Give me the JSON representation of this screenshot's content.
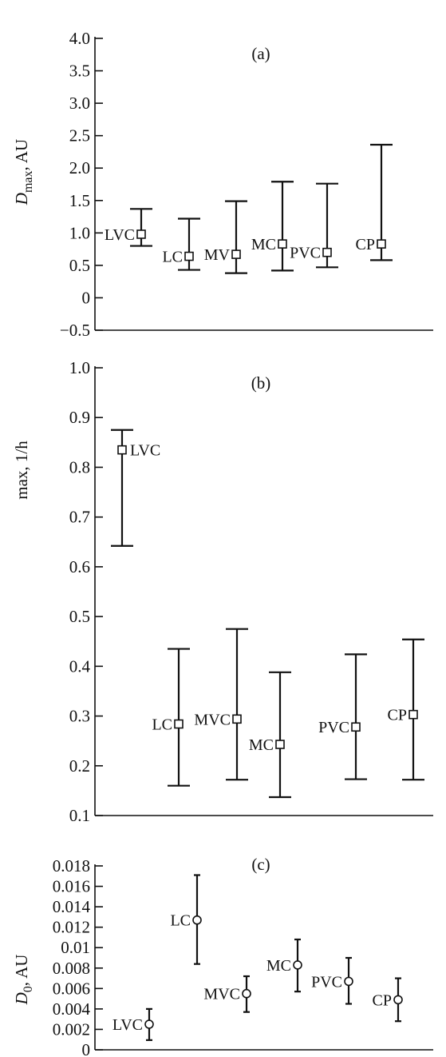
{
  "chart_data": [
    {
      "type": "scatter",
      "panel": "(a)",
      "ylabel": {
        "symbol": "D",
        "sub": "max",
        "unit": ", AU"
      },
      "ylim": [
        -0.5,
        4.0
      ],
      "yticks": [
        "4.0",
        "3.5",
        "3.0",
        "2.5",
        "2.0",
        "1.5",
        "1.0",
        "0.5",
        "0",
        "−0.5"
      ],
      "ytick_values": [
        4.0,
        3.5,
        3.0,
        2.5,
        2.0,
        1.5,
        1.0,
        0.5,
        0,
        -0.5
      ],
      "marker": "square",
      "label_side": "left",
      "points": [
        {
          "label": "LVC",
          "value": 0.98,
          "low": 0.8,
          "high": 1.37
        },
        {
          "label": "LC",
          "value": 0.64,
          "low": 0.43,
          "high": 1.22
        },
        {
          "label": "MV",
          "value": 0.67,
          "low": 0.38,
          "high": 1.49
        },
        {
          "label": "MC",
          "value": 0.83,
          "low": 0.42,
          "high": 1.79
        },
        {
          "label": "PVC",
          "value": 0.7,
          "low": 0.47,
          "high": 1.76
        },
        {
          "label": "CP",
          "value": 0.83,
          "low": 0.58,
          "high": 2.36
        }
      ]
    },
    {
      "type": "scatter",
      "panel": "(b)",
      "ylabel": {
        "symbol": "",
        "sub": "",
        "unit": "max, 1/h"
      },
      "ylim": [
        0.1,
        1.0
      ],
      "yticks": [
        "1.0",
        "0.9",
        "0.8",
        "0.7",
        "0.6",
        "0.5",
        "0.4",
        "0.3",
        "0.2",
        "0.1"
      ],
      "ytick_values": [
        1.0,
        0.9,
        0.8,
        0.7,
        0.6,
        0.5,
        0.4,
        0.3,
        0.2,
        0.1
      ],
      "marker": "square",
      "points": [
        {
          "label": "LVC",
          "value": 0.835,
          "low": 0.642,
          "high": 0.875,
          "label_side": "right"
        },
        {
          "label": "LC",
          "value": 0.284,
          "low": 0.16,
          "high": 0.435,
          "label_side": "left"
        },
        {
          "label": "MVC",
          "value": 0.294,
          "low": 0.172,
          "high": 0.475,
          "label_side": "left"
        },
        {
          "label": "MC",
          "value": 0.243,
          "low": 0.137,
          "high": 0.388,
          "label_side": "left"
        },
        {
          "label": "PVC",
          "value": 0.278,
          "low": 0.173,
          "high": 0.424,
          "label_side": "left"
        },
        {
          "label": "CP",
          "value": 0.303,
          "low": 0.172,
          "high": 0.454,
          "label_side": "left"
        }
      ]
    },
    {
      "type": "scatter",
      "panel": "(c)",
      "ylabel": {
        "symbol": "D",
        "sub": "0",
        "unit": ", AU"
      },
      "ylim": [
        0,
        0.018
      ],
      "yticks": [
        "0.018",
        "0.016",
        "0.014",
        "0.012",
        "0.01",
        "0.008",
        "0.006",
        "0.004",
        "0.002",
        "0"
      ],
      "ytick_values": [
        0.018,
        0.016,
        0.014,
        0.012,
        0.01,
        0.008,
        0.006,
        0.004,
        0.002,
        0
      ],
      "marker": "circle",
      "label_side": "left",
      "points": [
        {
          "label": "LVC",
          "value": 0.0025,
          "low": 0.00095,
          "high": 0.004
        },
        {
          "label": "LC",
          "value": 0.0127,
          "low": 0.0084,
          "high": 0.0171
        },
        {
          "label": "MVC",
          "value": 0.0055,
          "low": 0.0037,
          "high": 0.0072
        },
        {
          "label": "MC",
          "value": 0.0083,
          "low": 0.0057,
          "high": 0.0108
        },
        {
          "label": "PVC",
          "value": 0.0067,
          "low": 0.0045,
          "high": 0.009
        },
        {
          "label": "CP",
          "value": 0.0049,
          "low": 0.0028,
          "high": 0.007
        }
      ]
    }
  ]
}
